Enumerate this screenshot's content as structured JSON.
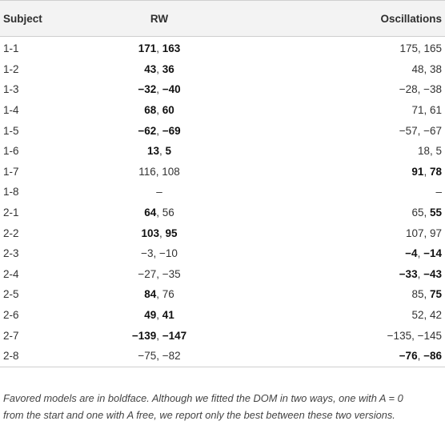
{
  "table": {
    "headers": {
      "subject": "Subject",
      "rw": "RW",
      "oscillations": "Oscillations"
    },
    "rows": [
      {
        "subject": "1-1",
        "rw": [
          {
            "t": "171",
            "b": true
          },
          {
            "t": ", ",
            "b": false
          },
          {
            "t": "163",
            "b": true
          }
        ],
        "osc": [
          {
            "t": "175, 165",
            "b": false
          }
        ]
      },
      {
        "subject": "1-2",
        "rw": [
          {
            "t": "43",
            "b": true
          },
          {
            "t": ", ",
            "b": false
          },
          {
            "t": "36",
            "b": true
          }
        ],
        "osc": [
          {
            "t": "48, 38",
            "b": false
          }
        ]
      },
      {
        "subject": "1-3",
        "rw": [
          {
            "t": "−32",
            "b": true
          },
          {
            "t": ", ",
            "b": false
          },
          {
            "t": "−40",
            "b": true
          }
        ],
        "osc": [
          {
            "t": "−28, −38",
            "b": false
          }
        ]
      },
      {
        "subject": "1-4",
        "rw": [
          {
            "t": "68",
            "b": true
          },
          {
            "t": ", ",
            "b": false
          },
          {
            "t": "60",
            "b": true
          }
        ],
        "osc": [
          {
            "t": "71, 61",
            "b": false
          }
        ]
      },
      {
        "subject": "1-5",
        "rw": [
          {
            "t": "−62",
            "b": true
          },
          {
            "t": ", ",
            "b": false
          },
          {
            "t": "−69",
            "b": true
          }
        ],
        "osc": [
          {
            "t": "−57, −67",
            "b": false
          }
        ]
      },
      {
        "subject": "1-6",
        "rw": [
          {
            "t": "13",
            "b": true
          },
          {
            "t": ", ",
            "b": false
          },
          {
            "t": "5",
            "b": true
          }
        ],
        "osc": [
          {
            "t": "18, 5",
            "b": false
          }
        ]
      },
      {
        "subject": "1-7",
        "rw": [
          {
            "t": "116, 108",
            "b": false
          }
        ],
        "osc": [
          {
            "t": "91",
            "b": true
          },
          {
            "t": ", ",
            "b": false
          },
          {
            "t": "78",
            "b": true
          }
        ]
      },
      {
        "subject": "1-8",
        "rw": [
          {
            "t": "–",
            "b": false
          }
        ],
        "osc": [
          {
            "t": "–",
            "b": false
          }
        ]
      },
      {
        "subject": "2-1",
        "rw": [
          {
            "t": "64",
            "b": true
          },
          {
            "t": ", 56",
            "b": false
          }
        ],
        "osc": [
          {
            "t": "65, ",
            "b": false
          },
          {
            "t": "55",
            "b": true
          }
        ]
      },
      {
        "subject": "2-2",
        "rw": [
          {
            "t": "103",
            "b": true
          },
          {
            "t": ", ",
            "b": false
          },
          {
            "t": "95",
            "b": true
          }
        ],
        "osc": [
          {
            "t": "107, 97",
            "b": false
          }
        ]
      },
      {
        "subject": "2-3",
        "rw": [
          {
            "t": "−3, −10",
            "b": false
          }
        ],
        "osc": [
          {
            "t": "−4",
            "b": true
          },
          {
            "t": ", ",
            "b": false
          },
          {
            "t": "−14",
            "b": true
          }
        ]
      },
      {
        "subject": "2-4",
        "rw": [
          {
            "t": "−27, −35",
            "b": false
          }
        ],
        "osc": [
          {
            "t": "−33",
            "b": true
          },
          {
            "t": ", ",
            "b": false
          },
          {
            "t": "−43",
            "b": true
          }
        ]
      },
      {
        "subject": "2-5",
        "rw": [
          {
            "t": "84",
            "b": true
          },
          {
            "t": ", 76",
            "b": false
          }
        ],
        "osc": [
          {
            "t": "85, ",
            "b": false
          },
          {
            "t": "75",
            "b": true
          }
        ]
      },
      {
        "subject": "2-6",
        "rw": [
          {
            "t": "49",
            "b": true
          },
          {
            "t": ", ",
            "b": false
          },
          {
            "t": "41",
            "b": true
          }
        ],
        "osc": [
          {
            "t": "52, 42",
            "b": false
          }
        ]
      },
      {
        "subject": "2-7",
        "rw": [
          {
            "t": "−139",
            "b": true
          },
          {
            "t": ", ",
            "b": false
          },
          {
            "t": "−147",
            "b": true
          }
        ],
        "osc": [
          {
            "t": "−135, −145",
            "b": false
          }
        ]
      },
      {
        "subject": "2-8",
        "rw": [
          {
            "t": "−75, −82",
            "b": false
          }
        ],
        "osc": [
          {
            "t": "−76",
            "b": true
          },
          {
            "t": ", ",
            "b": false
          },
          {
            "t": "−86",
            "b": true
          }
        ]
      }
    ]
  },
  "caption": {
    "line1": "Favored models are in boldface. Although we fitted the DOM in two ways, one with A = 0",
    "line2": "from the start and one with A free, we report only the best between these two versions."
  }
}
